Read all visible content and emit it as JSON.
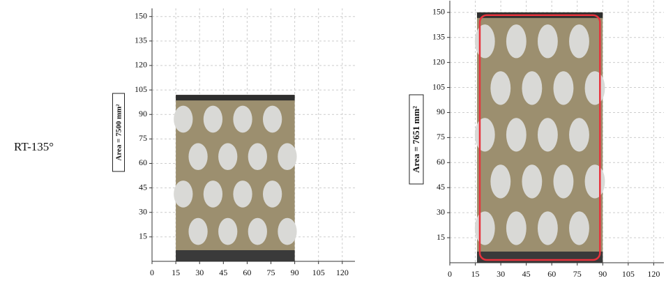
{
  "row_label": "RT-135°",
  "panels": [
    {
      "area_label": "Area = 7500 mm²",
      "xlim": [
        0,
        128
      ],
      "ylim": [
        0,
        155
      ],
      "xticks": [
        0,
        15,
        30,
        45,
        60,
        75,
        90,
        105,
        120
      ],
      "yticks": [
        15,
        30,
        45,
        60,
        75,
        90,
        105,
        120,
        135,
        150
      ]
    },
    {
      "area_label": "Area = 7651 mm²",
      "xlim": [
        0,
        126
      ],
      "ylim": [
        0,
        157
      ],
      "xticks": [
        0,
        15,
        30,
        45,
        60,
        75,
        90,
        105,
        120
      ],
      "yticks": [
        15,
        30,
        45,
        60,
        75,
        90,
        105,
        120,
        135,
        150
      ]
    }
  ]
}
